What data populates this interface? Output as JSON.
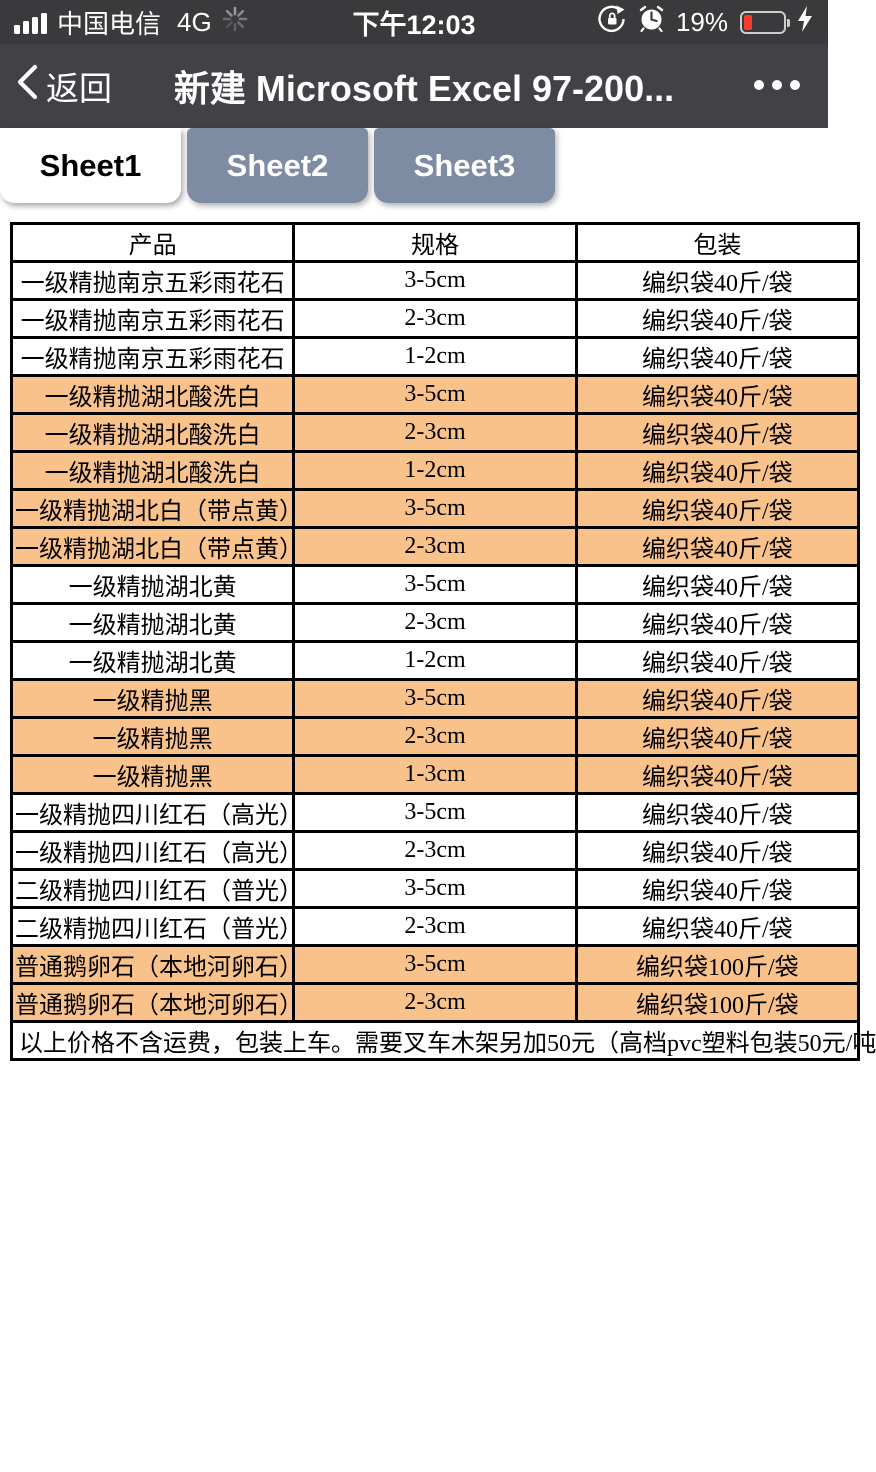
{
  "colors": {
    "status_bar_bg": "#3a3a3c",
    "nav_bar_bg": "#424246",
    "tab_inactive_bg": "#7d8ba3",
    "tab_active_bg": "#ffffff",
    "highlight_row_bg": "#f9c28a",
    "battery_fill": "#fa3b30",
    "table_border": "#000000"
  },
  "status_bar": {
    "carrier": "中国电信",
    "network": "4G",
    "time": "下午12:03",
    "battery_percent": "19%",
    "battery_level": 19,
    "icons": [
      "signal-bars-icon",
      "activity-spinner-icon",
      "rotation-lock-icon",
      "alarm-clock-icon",
      "battery-icon",
      "charging-bolt-icon"
    ]
  },
  "nav_bar": {
    "back_label": "返回",
    "title": "新建 Microsoft Excel 97-200...",
    "more_icon": "ellipsis-icon"
  },
  "tabs": [
    {
      "label": "Sheet1",
      "active": true
    },
    {
      "label": "Sheet2",
      "active": false
    },
    {
      "label": "Sheet3",
      "active": false
    }
  ],
  "table": {
    "headers": [
      "产品",
      "规格",
      "包装"
    ],
    "rows": [
      {
        "product": "一级精抛南京五彩雨花石",
        "spec": "3-5cm",
        "packing": "编织袋40斤/袋",
        "highlight": false
      },
      {
        "product": "一级精抛南京五彩雨花石",
        "spec": "2-3cm",
        "packing": "编织袋40斤/袋",
        "highlight": false
      },
      {
        "product": "一级精抛南京五彩雨花石",
        "spec": "1-2cm",
        "packing": "编织袋40斤/袋",
        "highlight": false
      },
      {
        "product": "一级精抛湖北酸洗白",
        "spec": "3-5cm",
        "packing": "编织袋40斤/袋",
        "highlight": true
      },
      {
        "product": "一级精抛湖北酸洗白",
        "spec": "2-3cm",
        "packing": "编织袋40斤/袋",
        "highlight": true
      },
      {
        "product": "一级精抛湖北酸洗白",
        "spec": "1-2cm",
        "packing": "编织袋40斤/袋",
        "highlight": true
      },
      {
        "product": "一级精抛湖北白（带点黄）",
        "spec": "3-5cm",
        "packing": "编织袋40斤/袋",
        "highlight": true
      },
      {
        "product": "一级精抛湖北白（带点黄）",
        "spec": "2-3cm",
        "packing": "编织袋40斤/袋",
        "highlight": true
      },
      {
        "product": "一级精抛湖北黄",
        "spec": "3-5cm",
        "packing": "编织袋40斤/袋",
        "highlight": false
      },
      {
        "product": "一级精抛湖北黄",
        "spec": "2-3cm",
        "packing": "编织袋40斤/袋",
        "highlight": false
      },
      {
        "product": "一级精抛湖北黄",
        "spec": "1-2cm",
        "packing": "编织袋40斤/袋",
        "highlight": false
      },
      {
        "product": "一级精抛黑",
        "spec": "3-5cm",
        "packing": "编织袋40斤/袋",
        "highlight": true
      },
      {
        "product": "一级精抛黑",
        "spec": "2-3cm",
        "packing": "编织袋40斤/袋",
        "highlight": true
      },
      {
        "product": "一级精抛黑",
        "spec": "1-3cm",
        "packing": "编织袋40斤/袋",
        "highlight": true
      },
      {
        "product": "一级精抛四川红石（高光）",
        "spec": "3-5cm",
        "packing": "编织袋40斤/袋",
        "highlight": false
      },
      {
        "product": "一级精抛四川红石（高光）",
        "spec": "2-3cm",
        "packing": "编织袋40斤/袋",
        "highlight": false
      },
      {
        "product": "二级精抛四川红石（普光）",
        "spec": "3-5cm",
        "packing": "编织袋40斤/袋",
        "highlight": false
      },
      {
        "product": "二级精抛四川红石（普光）",
        "spec": "2-3cm",
        "packing": "编织袋40斤/袋",
        "highlight": false
      },
      {
        "product": "普通鹅卵石（本地河卵石）",
        "spec": "3-5cm",
        "packing": "编织袋100斤/袋",
        "highlight": true
      },
      {
        "product": "普通鹅卵石（本地河卵石）",
        "spec": "2-3cm",
        "packing": "编织袋100斤/袋",
        "highlight": true
      }
    ],
    "footer_note": "以上价格不含运费，包装上车。需要叉车木架另加50元（高档pvc塑料包装50元/吨"
  }
}
